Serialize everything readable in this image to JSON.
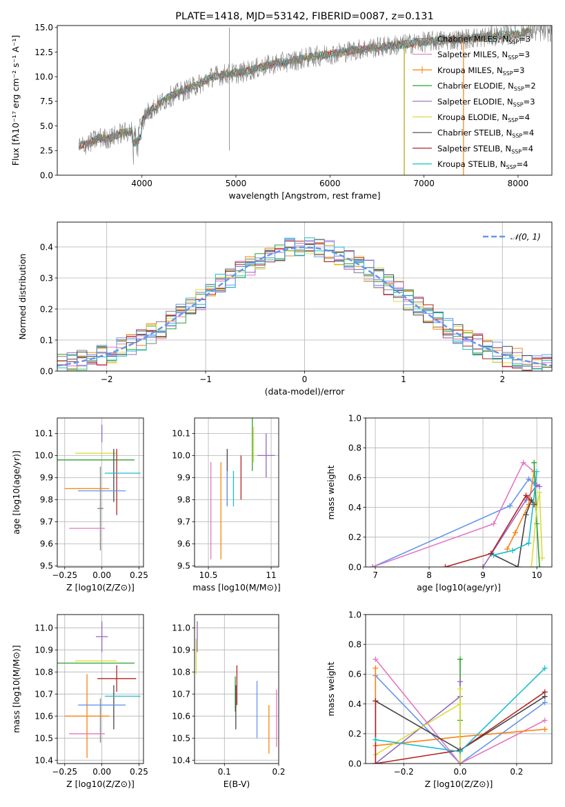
{
  "colors": {
    "chabrier_miles": "#808080",
    "salpeter_miles": "#e377c2",
    "kroupa_miles": "#ff7f0e",
    "chabrier_elodie": "#2ca02c",
    "salpeter_elodie": "#9467bd",
    "kroupa_elodie": "#dbdb3d",
    "chabrier_stelib": "#444444",
    "salpeter_stelib": "#b22222",
    "kroupa_stelib": "#17becf",
    "blue": "#6495ed",
    "grid": "#b0b0b0"
  },
  "chart_data": [
    {
      "id": "spectrum",
      "type": "line",
      "title": "PLATE=1418, MJD=53142, FIBERID=0087, z=0.131",
      "xlabel": "wavelength [Angstrom, rest frame]",
      "ylabel": "Flux [fλ10⁻¹⁷ erg cm⁻² s⁻¹ A⁻¹]",
      "xlim": [
        3100,
        8360
      ],
      "ylim": [
        0,
        15.2
      ],
      "xticks": [
        4000,
        5000,
        6000,
        7000,
        8000
      ],
      "yticks": [
        0.0,
        2.5,
        5.0,
        7.5,
        10.0,
        12.5,
        15.0
      ],
      "grid": false,
      "legend_position": "top-right",
      "observed": {
        "x": [
          3330,
          3450,
          3550,
          3650,
          3750,
          3850,
          3950,
          4050,
          4150,
          4300,
          4450,
          4600,
          4750,
          4900,
          5050,
          5200,
          5400,
          5600,
          5800,
          6000,
          6200,
          6400,
          6600,
          6800,
          7000,
          7200,
          7400,
          7600,
          7800,
          8000,
          8100
        ],
        "y": [
          2.9,
          3.3,
          3.8,
          3.7,
          4.2,
          4.4,
          4.6,
          6.3,
          7.0,
          8.0,
          8.6,
          9.2,
          10.0,
          10.3,
          10.4,
          10.8,
          11.3,
          11.6,
          12.0,
          12.3,
          12.6,
          12.9,
          13.1,
          13.3,
          13.5,
          13.7,
          13.8,
          14.0,
          14.2,
          14.3,
          14.6
        ]
      },
      "series": [
        {
          "name": "Chabrier MILES, NSSP=3",
          "color_key": "chabrier_miles"
        },
        {
          "name": "Salpeter MILES, NSSP=3",
          "color_key": "salpeter_miles"
        },
        {
          "name": "Kroupa MILES, NSSP=3",
          "color_key": "kroupa_miles"
        },
        {
          "name": "Chabrier ELODIE, NSSP=2",
          "color_key": "chabrier_elodie"
        },
        {
          "name": "Salpeter ELODIE, NSSP=3",
          "color_key": "salpeter_elodie"
        },
        {
          "name": "Kroupa ELODIE, NSSP=4",
          "color_key": "kroupa_elodie"
        },
        {
          "name": "Chabrier STELIB, NSSP=4",
          "color_key": "chabrier_stelib"
        },
        {
          "name": "Salpeter STELIB, NSSP=4",
          "color_key": "salpeter_stelib"
        },
        {
          "name": "Kroupa STELIB, NSSP=4",
          "color_key": "kroupa_stelib"
        }
      ]
    },
    {
      "id": "residuals",
      "type": "line",
      "xlabel": "(data-model)/error",
      "ylabel": "Normed distribution",
      "xlim": [
        -2.5,
        2.5
      ],
      "ylim": [
        0,
        0.48
      ],
      "xticks": [
        -2,
        -1,
        0,
        1,
        2
      ],
      "yticks": [
        0.0,
        0.1,
        0.2,
        0.3,
        0.4
      ],
      "grid": true,
      "legend": "𝒩(0, 1)",
      "legend_position": "top-right",
      "bin_width": 0.1
    },
    {
      "id": "age_vs_Z",
      "type": "scatter",
      "xlabel": "Z [log10(Z/Z⊙)]",
      "ylabel": "age  [log10(age/yr)]",
      "xlim": [
        -0.3,
        0.28
      ],
      "ylim": [
        9.495,
        10.17
      ],
      "xticks": [
        -0.25,
        0.0,
        0.25
      ],
      "xticklabels": [
        "−0.25",
        "0.00",
        "0.25"
      ],
      "yticks": [
        9.5,
        9.6,
        9.7,
        9.8,
        9.9,
        10.0,
        10.1
      ],
      "points": [
        {
          "key": "chabrier_miles",
          "x": -0.01,
          "xerr": 0.02,
          "y": 9.76,
          "yerr": 0.19
        },
        {
          "key": "salpeter_miles",
          "x": -0.1,
          "xerr": 0.12,
          "y": 9.67,
          "yerr": 0.0
        },
        {
          "key": "kroupa_miles",
          "x": -0.1,
          "xerr": 0.15,
          "y": 9.85,
          "yerr": 0.0
        },
        {
          "key": "chabrier_elodie",
          "x": -0.04,
          "xerr": 0.26,
          "y": 9.98,
          "yerr": 0.0
        },
        {
          "key": "salpeter_elodie",
          "x": 0.0,
          "xerr": 0.0,
          "y": 10.1,
          "yerr": 0.04
        },
        {
          "key": "kroupa_elodie",
          "x": -0.04,
          "xerr": 0.14,
          "y": 10.01,
          "yerr": 0.0
        },
        {
          "key": "chabrier_stelib",
          "x": 0.08,
          "xerr": 0.0,
          "y": 9.91,
          "yerr": 0.12
        },
        {
          "key": "salpeter_stelib",
          "x": 0.1,
          "xerr": 0.0,
          "y": 9.88,
          "yerr": 0.15
        },
        {
          "key": "kroupa_stelib",
          "x": 0.14,
          "xerr": 0.12,
          "y": 9.92,
          "yerr": 0.0
        },
        {
          "key": "blue",
          "x": 0.0,
          "xerr": 0.16,
          "y": 9.84,
          "yerr": 0.0
        }
      ]
    },
    {
      "id": "age_vs_mass",
      "type": "scatter",
      "xlabel": "mass [log10(M/M⊙)]",
      "xlim": [
        10.39,
        11.06
      ],
      "ylim": [
        9.495,
        10.17
      ],
      "xticks": [
        10.5,
        11.0
      ],
      "yticks": [
        9.5,
        9.6,
        9.7,
        9.8,
        9.9,
        10.0,
        10.1
      ],
      "points": [
        {
          "key": "salpeter_miles",
          "x": 10.52,
          "xerr": 0.0,
          "y": 9.75,
          "yerr": 0.22
        },
        {
          "key": "kroupa_miles",
          "x": 10.6,
          "xerr": 0.0,
          "y": 9.75,
          "yerr": 0.22
        },
        {
          "key": "chabrier_elodie",
          "x": 10.85,
          "xerr": 0.0,
          "y": 10.05,
          "yerr": 0.12
        },
        {
          "key": "salpeter_elodie",
          "x": 10.96,
          "xerr": 0.07,
          "y": 10.0,
          "yerr": 0.1
        },
        {
          "key": "kroupa_elodie",
          "x": 10.86,
          "xerr": 0.0,
          "y": 10.05,
          "yerr": 0.08
        },
        {
          "key": "chabrier_stelib",
          "x": 10.65,
          "xerr": 0.0,
          "y": 9.9,
          "yerr": 0.13
        },
        {
          "key": "salpeter_stelib",
          "x": 10.76,
          "xerr": 0.0,
          "y": 9.9,
          "yerr": 0.1
        },
        {
          "key": "kroupa_stelib",
          "x": 10.7,
          "xerr": 0.0,
          "y": 9.85,
          "yerr": 0.08
        },
        {
          "key": "blue",
          "x": 10.65,
          "xerr": 0.0,
          "y": 9.85,
          "yerr": 0.08
        }
      ]
    },
    {
      "id": "weight_vs_age",
      "type": "line",
      "xlabel": "age  [log10(age/yr)]",
      "ylabel": "mass weight",
      "xlim": [
        6.82,
        10.28
      ],
      "ylim": [
        0,
        1
      ],
      "xticks": [
        7,
        8,
        9,
        10
      ],
      "yticks": [
        0.0,
        0.2,
        0.4,
        0.6,
        0.8,
        1.0
      ],
      "grid": true,
      "series": [
        {
          "key": "blue",
          "x": [
            6.95,
            9.5,
            9.85,
            9.95
          ],
          "y": [
            0.0,
            0.41,
            0.59,
            0.56
          ]
        },
        {
          "key": "salpeter_miles",
          "x": [
            6.95,
            9.2,
            9.75,
            9.95
          ],
          "y": [
            0.0,
            0.29,
            0.7,
            0.64
          ]
        },
        {
          "key": "kroupa_miles",
          "x": [
            9.45,
            9.6,
            9.85,
            9.95
          ],
          "y": [
            0.12,
            0.23,
            0.42,
            0.64
          ]
        },
        {
          "key": "chabrier_elodie",
          "x": [
            9.95,
            10.0,
            10.05
          ],
          "y": [
            0.7,
            0.29,
            0.0
          ]
        },
        {
          "key": "salpeter_elodie",
          "x": [
            9.0,
            9.8,
            10.0,
            10.05
          ],
          "y": [
            0.0,
            0.45,
            0.55,
            0.54
          ]
        },
        {
          "key": "kroupa_elodie",
          "x": [
            9.9,
            10.0,
            10.05,
            10.1
          ],
          "y": [
            0.0,
            0.4,
            0.5,
            0.06
          ]
        },
        {
          "key": "chabrier_stelib",
          "x": [
            9.15,
            9.65,
            9.8,
            9.9,
            9.95
          ],
          "y": [
            0.09,
            0.0,
            0.35,
            0.45,
            0.42
          ]
        },
        {
          "key": "salpeter_stelib",
          "x": [
            8.3,
            9.15,
            9.8,
            9.95
          ],
          "y": [
            0.0,
            0.09,
            0.48,
            0.42
          ]
        },
        {
          "key": "kroupa_stelib",
          "x": [
            9.2,
            9.55,
            9.85,
            10.0
          ],
          "y": [
            0.08,
            0.11,
            0.16,
            0.64
          ]
        }
      ]
    },
    {
      "id": "mass_vs_Z",
      "type": "scatter",
      "xlabel": "Z [log10(Z/Z⊙)]",
      "ylabel": "mass [log10(M/M⊙)]",
      "xlim": [
        -0.3,
        0.28
      ],
      "ylim": [
        10.385,
        11.06
      ],
      "xticks": [
        -0.25,
        0.0,
        0.25
      ],
      "xticklabels": [
        "−0.25",
        "0.00",
        "0.25"
      ],
      "yticks": [
        10.4,
        10.5,
        10.6,
        10.7,
        10.8,
        10.9,
        11.0
      ],
      "points": [
        {
          "key": "chabrier_miles",
          "x": -0.01,
          "xerr": 0.0,
          "y": 10.58,
          "yerr": 0.1
        },
        {
          "key": "salpeter_miles",
          "x": -0.1,
          "xerr": 0.12,
          "y": 10.52,
          "yerr": 0.0
        },
        {
          "key": "kroupa_miles",
          "x": -0.1,
          "xerr": 0.15,
          "y": 10.6,
          "yerr": 0.19
        },
        {
          "key": "chabrier_elodie",
          "x": -0.04,
          "xerr": 0.26,
          "y": 10.84,
          "yerr": 0.0
        },
        {
          "key": "salpeter_elodie",
          "x": 0.0,
          "xerr": 0.04,
          "y": 10.96,
          "yerr": 0.07
        },
        {
          "key": "kroupa_elodie",
          "x": -0.04,
          "xerr": 0.14,
          "y": 10.85,
          "yerr": 0.0
        },
        {
          "key": "chabrier_stelib",
          "x": 0.08,
          "xerr": 0.0,
          "y": 10.64,
          "yerr": 0.1
        },
        {
          "key": "salpeter_stelib",
          "x": 0.1,
          "xerr": 0.13,
          "y": 10.77,
          "yerr": 0.06
        },
        {
          "key": "kroupa_stelib",
          "x": 0.14,
          "xerr": 0.12,
          "y": 10.69,
          "yerr": 0.0
        },
        {
          "key": "blue",
          "x": 0.0,
          "xerr": 0.16,
          "y": 10.65,
          "yerr": 0.0
        }
      ]
    },
    {
      "id": "mass_vs_ebv",
      "type": "scatter",
      "xlabel": "E(B-V)",
      "xlim": [
        0.045,
        0.2
      ],
      "ylim": [
        10.385,
        11.06
      ],
      "xticks": [
        0.1,
        0.2
      ],
      "yticks": [
        10.4,
        10.5,
        10.6,
        10.7,
        10.8,
        10.9,
        11.0
      ],
      "points": [
        {
          "key": "salpeter_elodie",
          "x": 0.05,
          "xerr": 0.0,
          "y": 10.96,
          "yerr": 0.07
        },
        {
          "key": "kroupa_elodie",
          "x": 0.048,
          "xerr": 0.0,
          "y": 10.87,
          "yerr": 0.08
        },
        {
          "key": "chabrier_elodie",
          "x": 0.12,
          "xerr": 0.0,
          "y": 10.7,
          "yerr": 0.08
        },
        {
          "key": "salpeter_stelib",
          "x": 0.123,
          "xerr": 0.0,
          "y": 10.74,
          "yerr": 0.09
        },
        {
          "key": "chabrier_stelib",
          "x": 0.121,
          "xerr": 0.0,
          "y": 10.64,
          "yerr": 0.1
        },
        {
          "key": "blue",
          "x": 0.16,
          "xerr": 0.0,
          "y": 10.63,
          "yerr": 0.13
        },
        {
          "key": "kroupa_miles",
          "x": 0.182,
          "xerr": 0.0,
          "y": 10.54,
          "yerr": 0.11
        },
        {
          "key": "salpeter_miles",
          "x": 0.196,
          "xerr": 0.0,
          "y": 10.59,
          "yerr": 0.13
        }
      ]
    },
    {
      "id": "weight_vs_Z",
      "type": "line",
      "xlabel": "Z [log10(Z/Z⊙)]",
      "ylabel": "mass weight",
      "xlim": [
        -0.335,
        0.325
      ],
      "ylim": [
        0,
        1
      ],
      "xticks": [
        -0.2,
        0.0,
        0.2
      ],
      "xticklabels": [
        "−0.2",
        "0.0",
        "0.2"
      ],
      "yticks": [
        0.0,
        0.2,
        0.4,
        0.6,
        0.8,
        1.0
      ],
      "grid": true,
      "series": [
        {
          "key": "blue",
          "x": [
            -0.3,
            0.0,
            0.3
          ],
          "y": [
            0.59,
            0.0,
            0.41
          ]
        },
        {
          "key": "salpeter_miles",
          "x": [
            -0.3,
            0.0,
            0.3
          ],
          "y": [
            0.7,
            0.0,
            0.29
          ]
        },
        {
          "key": "kroupa_miles",
          "x": [
            -0.3,
            -0.3,
            0.0,
            0.3
          ],
          "y": [
            0.64,
            0.12,
            0.18,
            0.23
          ]
        },
        {
          "key": "chabrier_elodie",
          "x": [
            0.0,
            0.0,
            0.0
          ],
          "y": [
            0.7,
            0.29,
            0.0
          ]
        },
        {
          "key": "salpeter_elodie",
          "x": [
            -0.3,
            0.0,
            0.0
          ],
          "y": [
            0.0,
            0.45,
            0.55
          ]
        },
        {
          "key": "kroupa_elodie",
          "x": [
            -0.3,
            0.0,
            0.0,
            0.0
          ],
          "y": [
            0.06,
            0.4,
            0.5,
            0.0
          ]
        },
        {
          "key": "chabrier_stelib",
          "x": [
            -0.3,
            -0.3,
            0.0,
            0.3
          ],
          "y": [
            0.0,
            0.42,
            0.09,
            0.45
          ]
        },
        {
          "key": "salpeter_stelib",
          "x": [
            -0.3,
            -0.3,
            0.0,
            0.3
          ],
          "y": [
            0.42,
            0.0,
            0.09,
            0.48
          ]
        },
        {
          "key": "kroupa_stelib",
          "x": [
            -0.3,
            0.0,
            0.3
          ],
          "y": [
            0.16,
            0.08,
            0.64
          ]
        }
      ]
    }
  ]
}
